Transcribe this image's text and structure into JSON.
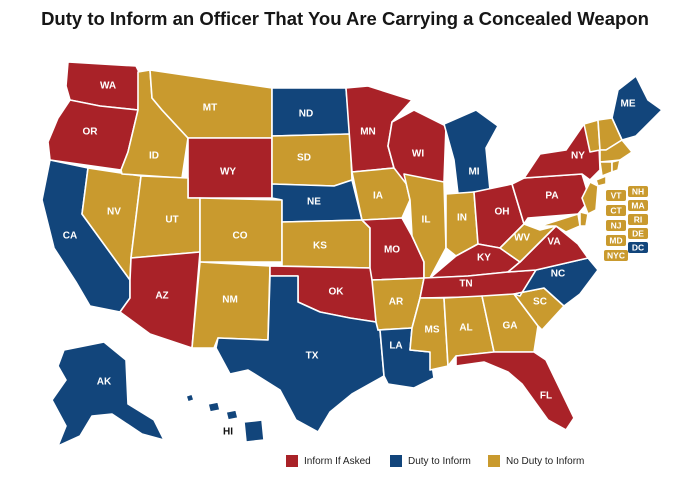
{
  "title": "Duty to Inform an Officer That You Are Carrying a Concealed Weapon",
  "colors": {
    "inform_if_asked": "#a92228",
    "duty_to_inform": "#12457b",
    "no_duty": "#c99a2e"
  },
  "legend": [
    {
      "key": "inform_if_asked",
      "label": "Inform If Asked"
    },
    {
      "key": "duty_to_inform",
      "label": "Duty to Inform"
    },
    {
      "key": "no_duty",
      "label": "No Duty to Inform"
    }
  ],
  "states": {
    "WA": "inform_if_asked",
    "OR": "inform_if_asked",
    "CA": "duty_to_inform",
    "NV": "no_duty",
    "ID": "no_duty",
    "MT": "no_duty",
    "WY": "inform_if_asked",
    "UT": "no_duty",
    "AZ": "inform_if_asked",
    "CO": "no_duty",
    "NM": "no_duty",
    "ND": "duty_to_inform",
    "SD": "no_duty",
    "NE": "duty_to_inform",
    "KS": "no_duty",
    "OK": "inform_if_asked",
    "TX": "duty_to_inform",
    "MN": "inform_if_asked",
    "IA": "no_duty",
    "MO": "inform_if_asked",
    "AR": "no_duty",
    "LA": "duty_to_inform",
    "WI": "inform_if_asked",
    "IL": "no_duty",
    "MI": "duty_to_inform",
    "IN": "no_duty",
    "OH": "inform_if_asked",
    "KY": "inform_if_asked",
    "TN": "inform_if_asked",
    "MS": "no_duty",
    "AL": "no_duty",
    "GA": "no_duty",
    "FL": "inform_if_asked",
    "SC": "no_duty",
    "NC": "duty_to_inform",
    "VA": "inform_if_asked",
    "WV": "no_duty",
    "PA": "inform_if_asked",
    "NY": "inform_if_asked",
    "ME": "duty_to_inform",
    "VT": "no_duty",
    "NH": "no_duty",
    "MA": "no_duty",
    "CT": "no_duty",
    "RI": "no_duty",
    "NJ": "no_duty",
    "DE": "no_duty",
    "MD": "no_duty",
    "DC": "duty_to_inform",
    "NYC": "no_duty",
    "AK": "duty_to_inform",
    "HI": "duty_to_inform"
  },
  "labels": {
    "WA": "WA",
    "OR": "OR",
    "CA": "CA",
    "NV": "NV",
    "ID": "ID",
    "MT": "MT",
    "WY": "WY",
    "UT": "UT",
    "AZ": "AZ",
    "CO": "CO",
    "NM": "NM",
    "ND": "ND",
    "SD": "SD",
    "NE": "NE",
    "KS": "KS",
    "OK": "OK",
    "TX": "TX",
    "MN": "MN",
    "IA": "IA",
    "MO": "MO",
    "AR": "AR",
    "LA": "LA",
    "WI": "WI",
    "IL": "IL",
    "MI": "MI",
    "IN": "IN",
    "OH": "OH",
    "KY": "KY",
    "TN": "TN",
    "MS": "MS",
    "AL": "AL",
    "GA": "GA",
    "FL": "FL",
    "SC": "SC",
    "NC": "NC",
    "VA": "VA",
    "WV": "WV",
    "PA": "PA",
    "NY": "NY",
    "ME": "ME",
    "AK": "AK",
    "HI": "HI"
  },
  "small_states": [
    "VT",
    "NH",
    "MA",
    "CT",
    "RI",
    "NJ",
    "DE",
    "MD",
    "DC",
    "NYC"
  ]
}
